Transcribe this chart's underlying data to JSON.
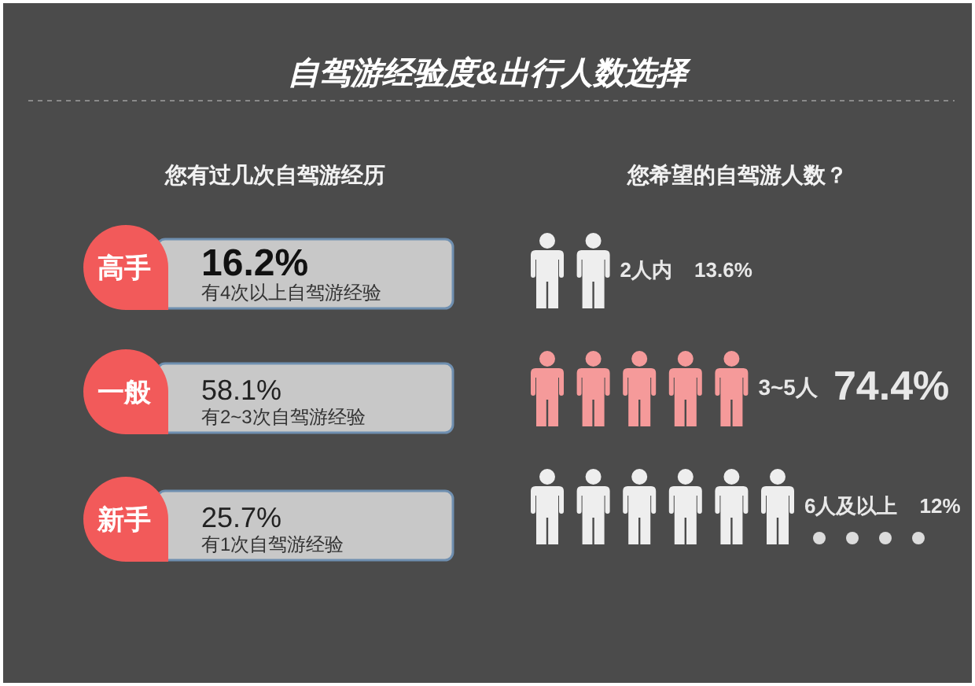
{
  "chart_data": [
    {
      "type": "other",
      "title": "自驾游经验度&出行人数选择",
      "subtitle": "您有过几次自驾游经历",
      "categories": [
        "高手",
        "一般",
        "新手"
      ],
      "values": [
        16.2,
        58.1,
        25.7
      ],
      "value_labels": [
        "16.2%",
        "58.1%",
        "25.7%"
      ],
      "annotations": [
        "有4次以上自驾游经验",
        "有2~3次自驾游经验",
        "有1次自驾游经验"
      ]
    },
    {
      "type": "other",
      "title": "您希望的自驾游人数？",
      "categories": [
        "2人内",
        "3~5人",
        "6人及以上"
      ],
      "values": [
        13.6,
        74.4,
        12
      ],
      "value_labels": [
        "13.6%",
        "74.4%",
        "12%"
      ],
      "colors": [
        "#eeeeee",
        "#f59a9a",
        "#eeeeee"
      ]
    }
  ]
}
